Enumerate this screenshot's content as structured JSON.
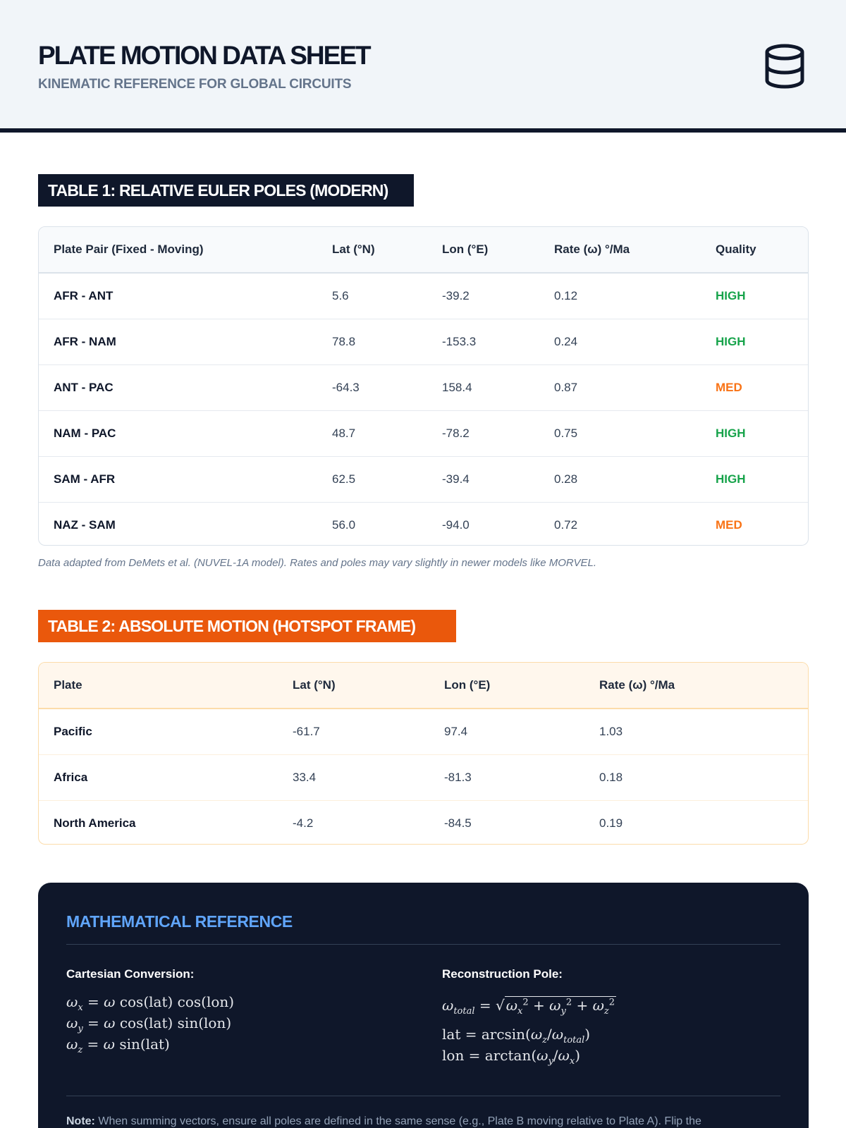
{
  "header": {
    "title": "PLATE MOTION DATA SHEET",
    "subtitle": "KINEMATIC REFERENCE FOR GLOBAL CIRCUITS",
    "icon": "database-icon"
  },
  "table1": {
    "title": "TABLE 1: RELATIVE EULER POLES (MODERN)",
    "columns": [
      "Plate Pair (Fixed - Moving)",
      "Lat (°N)",
      "Lon (°E)",
      "Rate (ω) °/Ma",
      "Quality"
    ],
    "rows": [
      [
        "AFR - ANT",
        "5.6",
        "-39.2",
        "0.12",
        "HIGH"
      ],
      [
        "AFR - NAM",
        "78.8",
        "-153.3",
        "0.24",
        "HIGH"
      ],
      [
        "ANT - PAC",
        "-64.3",
        "158.4",
        "0.87",
        "MED"
      ],
      [
        "NAM - PAC",
        "48.7",
        "-78.2",
        "0.75",
        "HIGH"
      ],
      [
        "SAM - AFR",
        "62.5",
        "-39.4",
        "0.28",
        "HIGH"
      ],
      [
        "NAZ - SAM",
        "56.0",
        "-94.0",
        "0.72",
        "MED"
      ]
    ],
    "footnote": "Data adapted from DeMets et al. (NUVEL-1A model). Rates and poles may vary slightly in newer models like MORVEL."
  },
  "table2": {
    "title": "TABLE 2: ABSOLUTE MOTION (HOTSPOT FRAME)",
    "columns": [
      "Plate",
      "Lat (°N)",
      "Lon (°E)",
      "Rate (ω) °/Ma"
    ],
    "rows": [
      [
        "Pacific",
        "-61.7",
        "97.4",
        "1.03"
      ],
      [
        "Africa",
        "33.4",
        "-81.3",
        "0.18"
      ],
      [
        "North America",
        "-4.2",
        "-84.5",
        "0.19"
      ]
    ]
  },
  "math": {
    "title": "MATHEMATICAL REFERENCE",
    "left_heading": "Cartesian Conversion:",
    "right_heading": "Reconstruction Pole:",
    "note_label": "Note:",
    "note_text": "When summing vectors, ensure all poles are defined in the same sense (e.g., Plate B moving relative to Plate A). Flip the"
  },
  "colors": {
    "dark": "#0f172a",
    "accent_orange": "#ea580c",
    "accent_blue": "#60a5fa",
    "quality_high": "#16a34a",
    "quality_med": "#f97316"
  }
}
